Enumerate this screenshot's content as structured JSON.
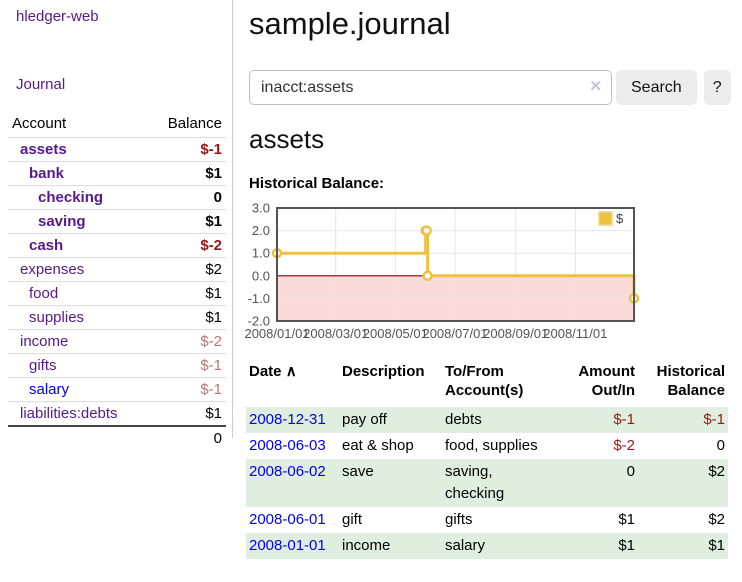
{
  "colors": {
    "link_purple": "#551a8b",
    "link_blue": "#0000ee",
    "negative_strong": "#9a1616",
    "negative_muted": "#bc7676",
    "row_green": "#e0eee0",
    "series_yellow": "#edc240",
    "negative_region_pink": "#fbdada",
    "zero_line_red": "#8b0000",
    "grid_line": "#e6e6e6",
    "chart_border": "#545454"
  },
  "sidebar": {
    "app_title": "hledger-web",
    "journal_link": "Journal",
    "accounts": {
      "header_account": "Account",
      "header_balance": "Balance",
      "rows": [
        {
          "name": "assets",
          "balance": "$-1",
          "depth": 1,
          "bold": true
        },
        {
          "name": "bank",
          "balance": "$1",
          "depth": 2,
          "bold": true
        },
        {
          "name": "checking",
          "balance": "0",
          "depth": 3,
          "bold": true
        },
        {
          "name": "saving",
          "balance": "$1",
          "depth": 3,
          "bold": true
        },
        {
          "name": "cash",
          "balance": "$-2",
          "depth": 2,
          "bold": true
        },
        {
          "name": "expenses",
          "balance": "$2",
          "depth": 1,
          "bold": false
        },
        {
          "name": "food",
          "balance": "$1",
          "depth": 2,
          "bold": false
        },
        {
          "name": "supplies",
          "balance": "$1",
          "depth": 2,
          "bold": false
        },
        {
          "name": "income",
          "balance": "$-2",
          "depth": 1,
          "bold": false
        },
        {
          "name": "gifts",
          "balance": "$-1",
          "depth": 2,
          "bold": false
        },
        {
          "name": "salary",
          "balance": "$-1",
          "depth": 2,
          "bold": false,
          "unvisited": true
        },
        {
          "name": "liabilities:debts",
          "balance": "$1",
          "depth": 1,
          "bold": false
        }
      ],
      "total": "0"
    }
  },
  "main": {
    "title": "sample.journal",
    "search": {
      "value": "inacct:assets",
      "clear_icon": "✕",
      "search_button": "Search",
      "help_button": "?"
    },
    "account_heading": "assets",
    "section_label": "Historical Balance:"
  },
  "chart_data": {
    "type": "line",
    "step": true,
    "title": "Historical Balance of assets",
    "series": [
      {
        "name": "$",
        "color": "#edc240",
        "points": [
          {
            "date": "2008-01-01",
            "value": 1
          },
          {
            "date": "2008-06-01",
            "value": 2
          },
          {
            "date": "2008-06-02",
            "value": 2
          },
          {
            "date": "2008-06-03",
            "value": 0
          },
          {
            "date": "2008-12-31",
            "value": -1
          }
        ]
      }
    ],
    "x_range": [
      "2008-01-01",
      "2008-12-31"
    ],
    "x_ticks": [
      {
        "date": "2008-01-01",
        "label": "2008/01/01"
      },
      {
        "date": "2008-03-01",
        "label": "2008/03/01"
      },
      {
        "date": "2008-05-01",
        "label": "2008/05/01"
      },
      {
        "date": "2008-07-01",
        "label": "2008/07/01"
      },
      {
        "date": "2008-09-01",
        "label": "2008/09/01"
      },
      {
        "date": "2008-11-01",
        "label": "2008/11/01"
      }
    ],
    "y_ticks": [
      {
        "value": 3,
        "label": "3.0"
      },
      {
        "value": 2,
        "label": "2.0"
      },
      {
        "value": 1,
        "label": "1.0"
      },
      {
        "value": 0,
        "label": "0.0"
      },
      {
        "value": -1,
        "label": "-1.0"
      },
      {
        "value": -2,
        "label": "-2.0"
      }
    ],
    "ylim": [
      -2,
      3
    ],
    "grid": true,
    "negative_region_shaded": true,
    "legend": {
      "label": "$",
      "position": "top-right"
    }
  },
  "register": {
    "headers": {
      "date": "Date",
      "sort_icon": "∧",
      "description": "Description",
      "accounts": "To/From\nAccount(s)",
      "amount": "Amount\nOut/In",
      "balance": "Historical\nBalance"
    },
    "rows": [
      {
        "date": "2008-12-31",
        "description": "pay off",
        "accounts": "debts",
        "amount": "$-1",
        "balance": "$-1"
      },
      {
        "date": "2008-06-03",
        "description": "eat & shop",
        "accounts": "food, supplies",
        "amount": "$-2",
        "balance": "0"
      },
      {
        "date": "2008-06-02",
        "description": "save",
        "accounts": "saving, checking",
        "amount": "0",
        "balance": "$2"
      },
      {
        "date": "2008-06-01",
        "description": "gift",
        "accounts": "gifts",
        "amount": "$1",
        "balance": "$2"
      },
      {
        "date": "2008-01-01",
        "description": "income",
        "accounts": "salary",
        "amount": "$1",
        "balance": "$1"
      }
    ]
  }
}
